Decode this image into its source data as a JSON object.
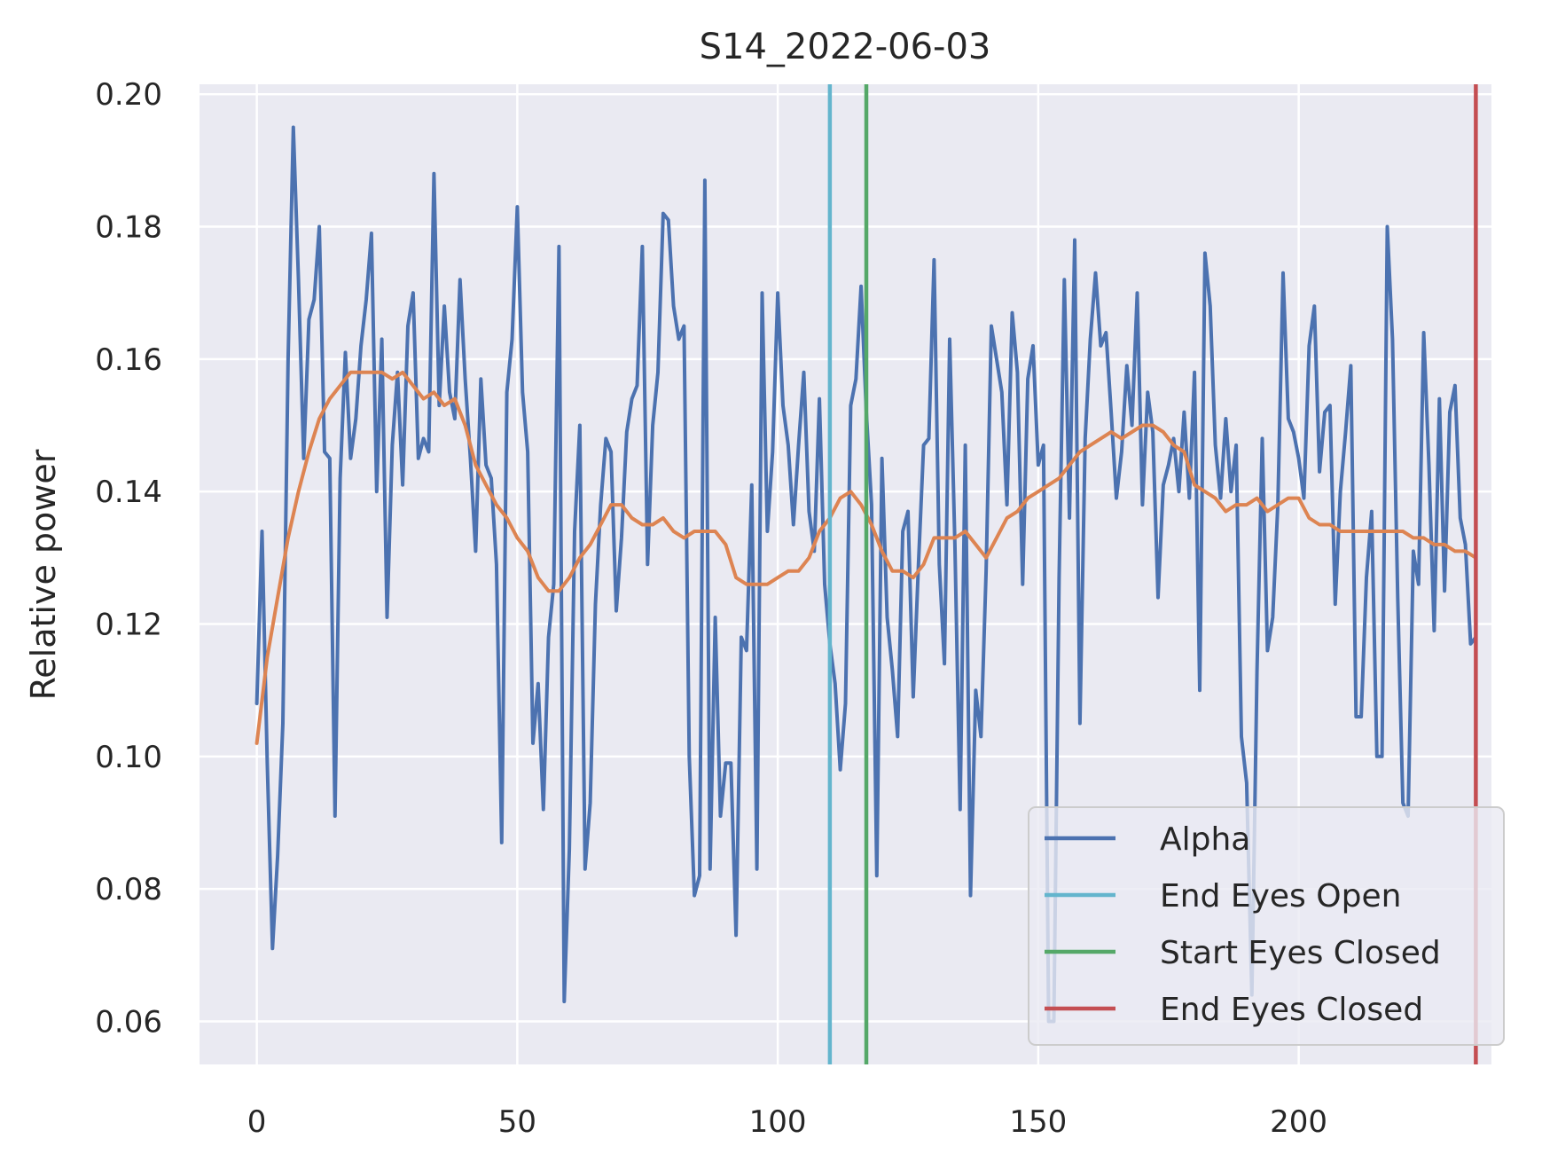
{
  "chart_data": {
    "type": "line",
    "title": "S14_2022-06-03",
    "xlabel": "",
    "ylabel": "Relative power",
    "xlim": [
      -11,
      237
    ],
    "ylim": [
      0.0535,
      0.2015
    ],
    "xticks": [
      0,
      50,
      100,
      150,
      200
    ],
    "yticks": [
      0.06,
      0.08,
      0.1,
      0.12,
      0.14,
      0.16,
      0.18,
      0.2
    ],
    "ytick_labels": [
      "0.06",
      "0.08",
      "0.10",
      "0.12",
      "0.14",
      "0.16",
      "0.18",
      "0.20"
    ],
    "grid": true,
    "legend_position": "lower-right",
    "colors": {
      "alpha": "#4c72b0",
      "smooth": "#dd8452",
      "end_eyes_open": "#64b5cd",
      "start_eyes_closed": "#55a868",
      "end_eyes_closed": "#c44e52",
      "plot_bg": "#eaeaf2",
      "grid": "#ffffff"
    },
    "series": [
      {
        "name": "Alpha",
        "x": [
          0,
          1,
          2,
          3,
          4,
          5,
          6,
          7,
          8,
          9,
          10,
          11,
          12,
          13,
          14,
          15,
          16,
          17,
          18,
          19,
          20,
          21,
          22,
          23,
          24,
          25,
          26,
          27,
          28,
          29,
          30,
          31,
          32,
          33,
          34,
          35,
          36,
          37,
          38,
          39,
          40,
          41,
          42,
          43,
          44,
          45,
          46,
          47,
          48,
          49,
          50,
          51,
          52,
          53,
          54,
          55,
          56,
          57,
          58,
          59,
          60,
          61,
          62,
          63,
          64,
          65,
          66,
          67,
          68,
          69,
          70,
          71,
          72,
          73,
          74,
          75,
          76,
          77,
          78,
          79,
          80,
          81,
          82,
          83,
          84,
          85,
          86,
          87,
          88,
          89,
          90,
          91,
          92,
          93,
          94,
          95,
          96,
          97,
          98,
          99,
          100,
          101,
          102,
          103,
          104,
          105,
          106,
          107,
          108,
          109,
          110,
          111,
          112,
          113,
          114,
          115,
          116,
          117,
          118,
          119,
          120,
          121,
          122,
          123,
          124,
          125,
          126,
          127,
          128,
          129,
          130,
          131,
          132,
          133,
          134,
          135,
          136,
          137,
          138,
          139,
          140,
          141,
          142,
          143,
          144,
          145,
          146,
          147,
          148,
          149,
          150,
          151,
          152,
          153,
          154,
          155,
          156,
          157,
          158,
          159,
          160,
          161,
          162,
          163,
          164,
          165,
          166,
          167,
          168,
          169,
          170,
          171,
          172,
          173,
          174,
          175,
          176,
          177,
          178,
          179,
          180,
          181,
          182,
          183,
          184,
          185,
          186,
          187,
          188,
          189,
          190,
          191,
          192,
          193,
          194,
          195,
          196,
          197,
          198,
          199,
          200,
          201,
          202,
          203,
          204,
          205,
          206,
          207,
          208,
          209,
          210,
          211,
          212,
          213,
          214,
          215,
          216,
          217,
          218,
          219,
          220,
          221,
          222,
          223,
          224,
          225,
          226,
          227,
          228,
          229,
          230,
          231,
          232,
          233,
          234
        ],
        "y": [
          0.108,
          0.134,
          0.099,
          0.071,
          0.085,
          0.105,
          0.16,
          0.195,
          0.172,
          0.145,
          0.166,
          0.169,
          0.18,
          0.146,
          0.145,
          0.091,
          0.142,
          0.161,
          0.145,
          0.151,
          0.162,
          0.169,
          0.179,
          0.14,
          0.163,
          0.121,
          0.147,
          0.158,
          0.141,
          0.165,
          0.17,
          0.145,
          0.148,
          0.146,
          0.188,
          0.153,
          0.168,
          0.155,
          0.151,
          0.172,
          0.157,
          0.145,
          0.131,
          0.157,
          0.144,
          0.142,
          0.129,
          0.087,
          0.155,
          0.163,
          0.183,
          0.155,
          0.146,
          0.102,
          0.111,
          0.092,
          0.118,
          0.126,
          0.177,
          0.063,
          0.086,
          0.134,
          0.15,
          0.083,
          0.093,
          0.123,
          0.138,
          0.148,
          0.146,
          0.122,
          0.133,
          0.149,
          0.154,
          0.156,
          0.177,
          0.129,
          0.15,
          0.158,
          0.182,
          0.181,
          0.168,
          0.163,
          0.165,
          0.1,
          0.079,
          0.082,
          0.187,
          0.083,
          0.121,
          0.091,
          0.099,
          0.099,
          0.073,
          0.118,
          0.116,
          0.141,
          0.083,
          0.17,
          0.134,
          0.146,
          0.17,
          0.153,
          0.147,
          0.135,
          0.147,
          0.158,
          0.137,
          0.131,
          0.154,
          0.126,
          0.117,
          0.111,
          0.098,
          0.108,
          0.153,
          0.157,
          0.171,
          0.152,
          0.138,
          0.082,
          0.145,
          0.121,
          0.113,
          0.103,
          0.134,
          0.137,
          0.109,
          0.129,
          0.147,
          0.148,
          0.175,
          0.129,
          0.114,
          0.163,
          0.132,
          0.092,
          0.147,
          0.079,
          0.11,
          0.103,
          0.128,
          0.165,
          0.16,
          0.155,
          0.138,
          0.167,
          0.158,
          0.126,
          0.157,
          0.162,
          0.144,
          0.147,
          0.06,
          0.06,
          0.127,
          0.172,
          0.136,
          0.178,
          0.105,
          0.148,
          0.163,
          0.173,
          0.162,
          0.164,
          0.152,
          0.139,
          0.146,
          0.159,
          0.15,
          0.17,
          0.138,
          0.155,
          0.149,
          0.124,
          0.141,
          0.144,
          0.148,
          0.14,
          0.152,
          0.139,
          0.158,
          0.11,
          0.176,
          0.168,
          0.147,
          0.139,
          0.151,
          0.14,
          0.147,
          0.103,
          0.096,
          0.064,
          0.113,
          0.148,
          0.116,
          0.121,
          0.138,
          0.173,
          0.151,
          0.149,
          0.145,
          0.139,
          0.162,
          0.168,
          0.143,
          0.152,
          0.153,
          0.123,
          0.14,
          0.149,
          0.159,
          0.106,
          0.106,
          0.127,
          0.137,
          0.1,
          0.1,
          0.18,
          0.163,
          0.124,
          0.093,
          0.091,
          0.131,
          0.126,
          0.164,
          0.144,
          0.119,
          0.154,
          0.125,
          0.152,
          0.156,
          0.136,
          0.132,
          0.117,
          0.118
        ]
      },
      {
        "x": [
          0,
          2,
          4,
          6,
          8,
          10,
          12,
          14,
          16,
          18,
          20,
          22,
          24,
          26,
          28,
          30,
          32,
          34,
          36,
          38,
          40,
          42,
          44,
          46,
          48,
          50,
          52,
          54,
          56,
          58,
          60,
          62,
          64,
          66,
          68,
          70,
          72,
          74,
          76,
          78,
          80,
          82,
          84,
          86,
          88,
          90,
          92,
          94,
          96,
          98,
          100,
          102,
          104,
          106,
          108,
          110,
          112,
          114,
          116,
          118,
          120,
          122,
          124,
          126,
          128,
          130,
          132,
          134,
          136,
          138,
          140,
          142,
          144,
          146,
          148,
          150,
          152,
          154,
          156,
          158,
          160,
          162,
          164,
          166,
          168,
          170,
          172,
          174,
          176,
          178,
          180,
          182,
          184,
          186,
          188,
          190,
          192,
          194,
          196,
          198,
          200,
          202,
          204,
          206,
          208,
          210,
          212,
          214,
          216,
          218,
          220,
          222,
          224,
          226,
          228,
          230,
          232,
          234
        ],
        "y": [
          0.102,
          0.115,
          0.124,
          0.133,
          0.14,
          0.146,
          0.151,
          0.154,
          0.156,
          0.158,
          0.158,
          0.158,
          0.158,
          0.157,
          0.158,
          0.156,
          0.154,
          0.155,
          0.153,
          0.154,
          0.15,
          0.144,
          0.141,
          0.138,
          0.136,
          0.133,
          0.131,
          0.127,
          0.125,
          0.125,
          0.127,
          0.13,
          0.132,
          0.135,
          0.138,
          0.138,
          0.136,
          0.135,
          0.135,
          0.136,
          0.134,
          0.133,
          0.134,
          0.134,
          0.134,
          0.132,
          0.127,
          0.126,
          0.126,
          0.126,
          0.127,
          0.128,
          0.128,
          0.13,
          0.134,
          0.136,
          0.139,
          0.14,
          0.138,
          0.135,
          0.131,
          0.128,
          0.128,
          0.127,
          0.129,
          0.133,
          0.133,
          0.133,
          0.134,
          0.132,
          0.13,
          0.133,
          0.136,
          0.137,
          0.139,
          0.14,
          0.141,
          0.142,
          0.144,
          0.146,
          0.147,
          0.148,
          0.149,
          0.148,
          0.149,
          0.15,
          0.15,
          0.149,
          0.147,
          0.146,
          0.141,
          0.14,
          0.139,
          0.137,
          0.138,
          0.138,
          0.139,
          0.137,
          0.138,
          0.139,
          0.139,
          0.136,
          0.135,
          0.135,
          0.134,
          0.134,
          0.134,
          0.134,
          0.134,
          0.134,
          0.134,
          0.133,
          0.133,
          0.132,
          0.132,
          0.131,
          0.131,
          0.13
        ]
      },
      {
        "name": "End Eyes Open",
        "x": 110
      },
      {
        "name": "Start Eyes Closed",
        "x": 117
      },
      {
        "name": "End Eyes Closed",
        "x": 234
      }
    ]
  }
}
